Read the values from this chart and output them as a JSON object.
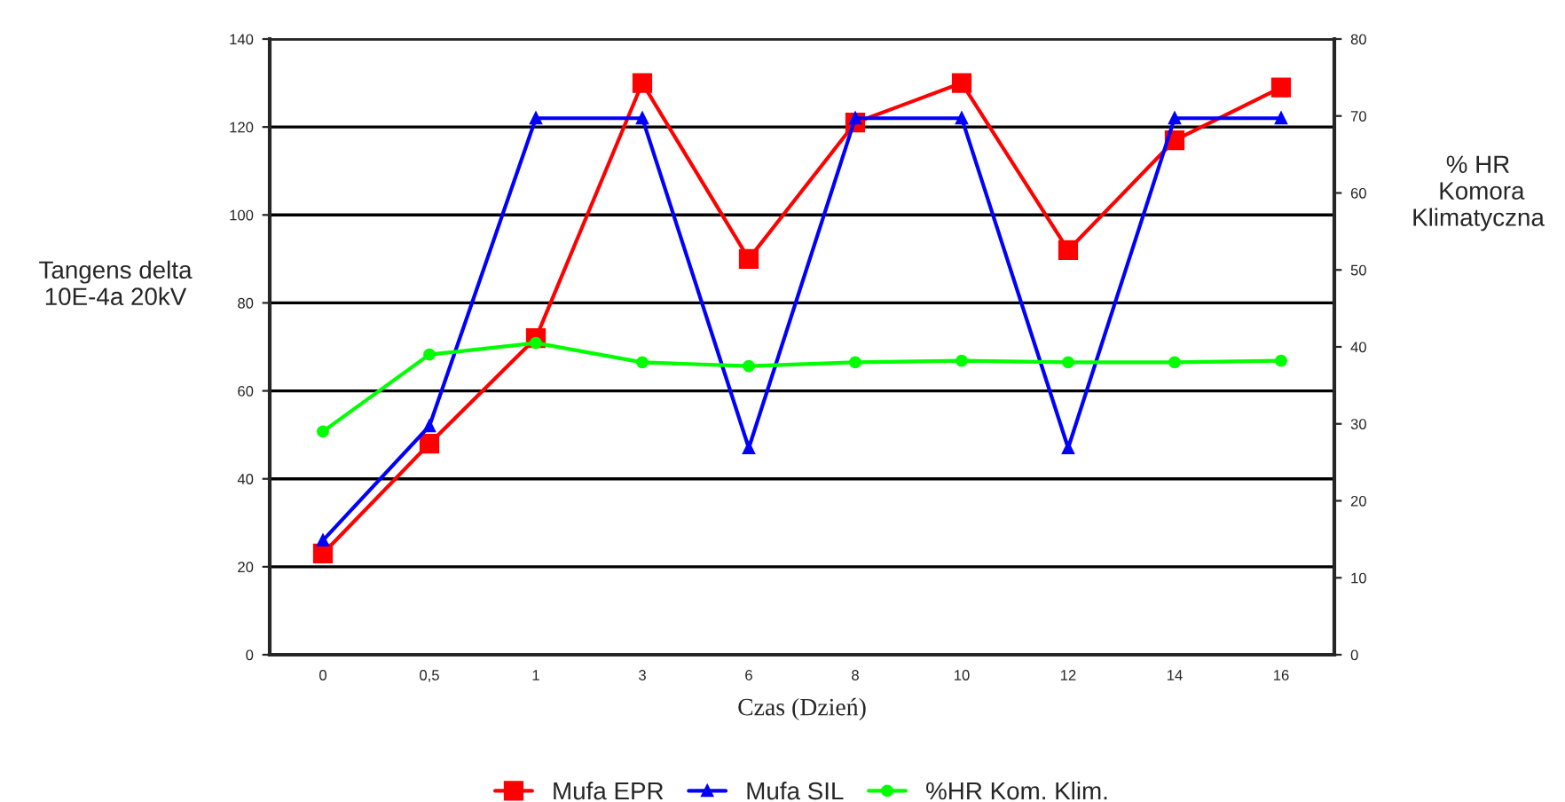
{
  "chart_data": {
    "type": "line",
    "xlabel": "Czas (Dzień)",
    "ylabel": "Tangens delta\n10E-4a 20kV",
    "y2label": "% HR\n Komora\nKlimatyczna",
    "categories": [
      "0",
      "0,5",
      "1",
      "3",
      "6",
      "8",
      "10",
      "12",
      "14",
      "16"
    ],
    "series": [
      {
        "name": "Mufa EPR",
        "color": "#ff0000",
        "marker": "square",
        "values": [
          23,
          48,
          72,
          130,
          90,
          121,
          130,
          92,
          117,
          129
        ]
      },
      {
        "name": "Mufa SIL",
        "color": "#0000ff",
        "marker": "triangle",
        "values": [
          26,
          52,
          122,
          122,
          47,
          122,
          122,
          47,
          122,
          122
        ]
      },
      {
        "name": "%HR Kom. Klim.",
        "color": "#00ff00",
        "marker": "circle",
        "axis": "y2",
        "values": [
          29,
          39,
          40.5,
          38,
          37.5,
          38,
          38.2,
          38,
          38,
          38.2
        ]
      }
    ],
    "ylim": [
      0,
      140
    ],
    "yticks": [
      0,
      20,
      40,
      60,
      80,
      100,
      120,
      140
    ],
    "y2lim": [
      0,
      80
    ],
    "y2ticks": [
      0,
      10,
      20,
      30,
      40,
      50,
      60,
      70,
      80
    ],
    "grid": "y",
    "legend": "bottom",
    "line_style": "solid"
  }
}
